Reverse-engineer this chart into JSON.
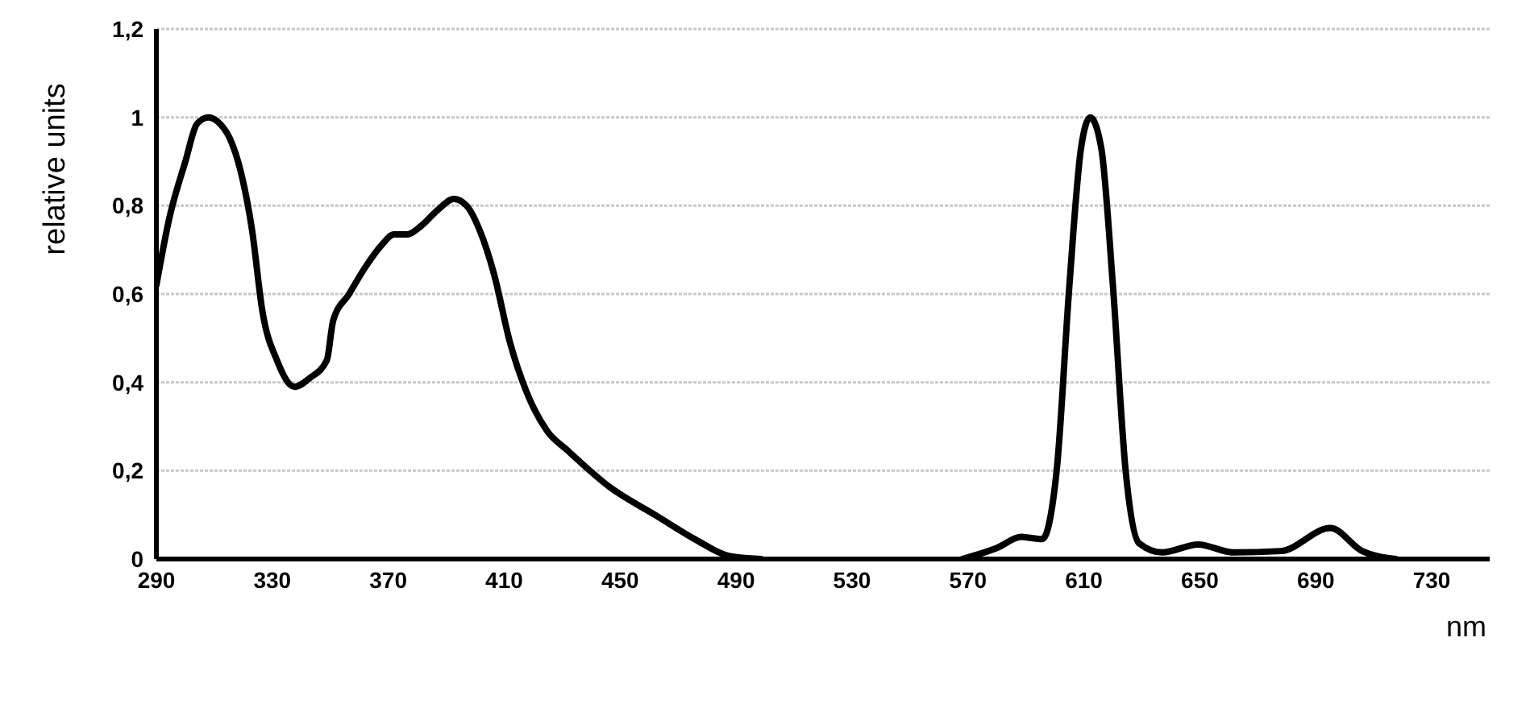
{
  "chart_data": {
    "type": "line",
    "xlabel": "nm",
    "ylabel": "relative units",
    "x": [
      290,
      294.4,
      300,
      304,
      308,
      312,
      315.5,
      319,
      323,
      326.6,
      331.6,
      337.7,
      343,
      348.8,
      351,
      356.5,
      362,
      367.6,
      372,
      376.5,
      381.5,
      387,
      392.6,
      397,
      401.5,
      406.5,
      412,
      417.6,
      424.8,
      432,
      447,
      462,
      476,
      487.5,
      498.5,
      535,
      568,
      580,
      588.4,
      595.6,
      600.6,
      605,
      609,
      612.2,
      616,
      620,
      624.4,
      629,
      637,
      649.4,
      661.6,
      678,
      695,
      706,
      717.6
    ],
    "series": [
      {
        "color": "#000000",
        "values": [
          0.62,
          0.77,
          0.9,
          0.985,
          1.0,
          0.985,
          0.95,
          0.88,
          0.745,
          0.56,
          0.45,
          0.39,
          0.41,
          0.45,
          0.54,
          0.6,
          0.66,
          0.71,
          0.735,
          0.735,
          0.755,
          0.79,
          0.815,
          0.8,
          0.745,
          0.645,
          0.49,
          0.38,
          0.29,
          0.245,
          0.16,
          0.1,
          0.044,
          0.007,
          0,
          null,
          0,
          0.025,
          0.05,
          0.045,
          0.2,
          0.62,
          0.93,
          1.0,
          0.93,
          0.62,
          0.2,
          0.036,
          0.015,
          0.033,
          0.015,
          0.018,
          0.07,
          0.018,
          0
        ]
      }
    ],
    "xlim": [
      290,
      750
    ],
    "xticks": [
      290,
      330,
      370,
      410,
      450,
      490,
      530,
      570,
      610,
      650,
      690,
      730
    ],
    "ylim": [
      0,
      1.2
    ],
    "yticks": [
      0,
      {
        "value": 0.2,
        "label": "0,2"
      },
      {
        "value": 0.4,
        "label": "0,4"
      },
      {
        "value": 0.6,
        "label": "0,6"
      },
      {
        "value": 0.8,
        "label": "0,8"
      },
      1,
      {
        "value": 1.2,
        "label": "1,2"
      }
    ],
    "grid": "y"
  }
}
